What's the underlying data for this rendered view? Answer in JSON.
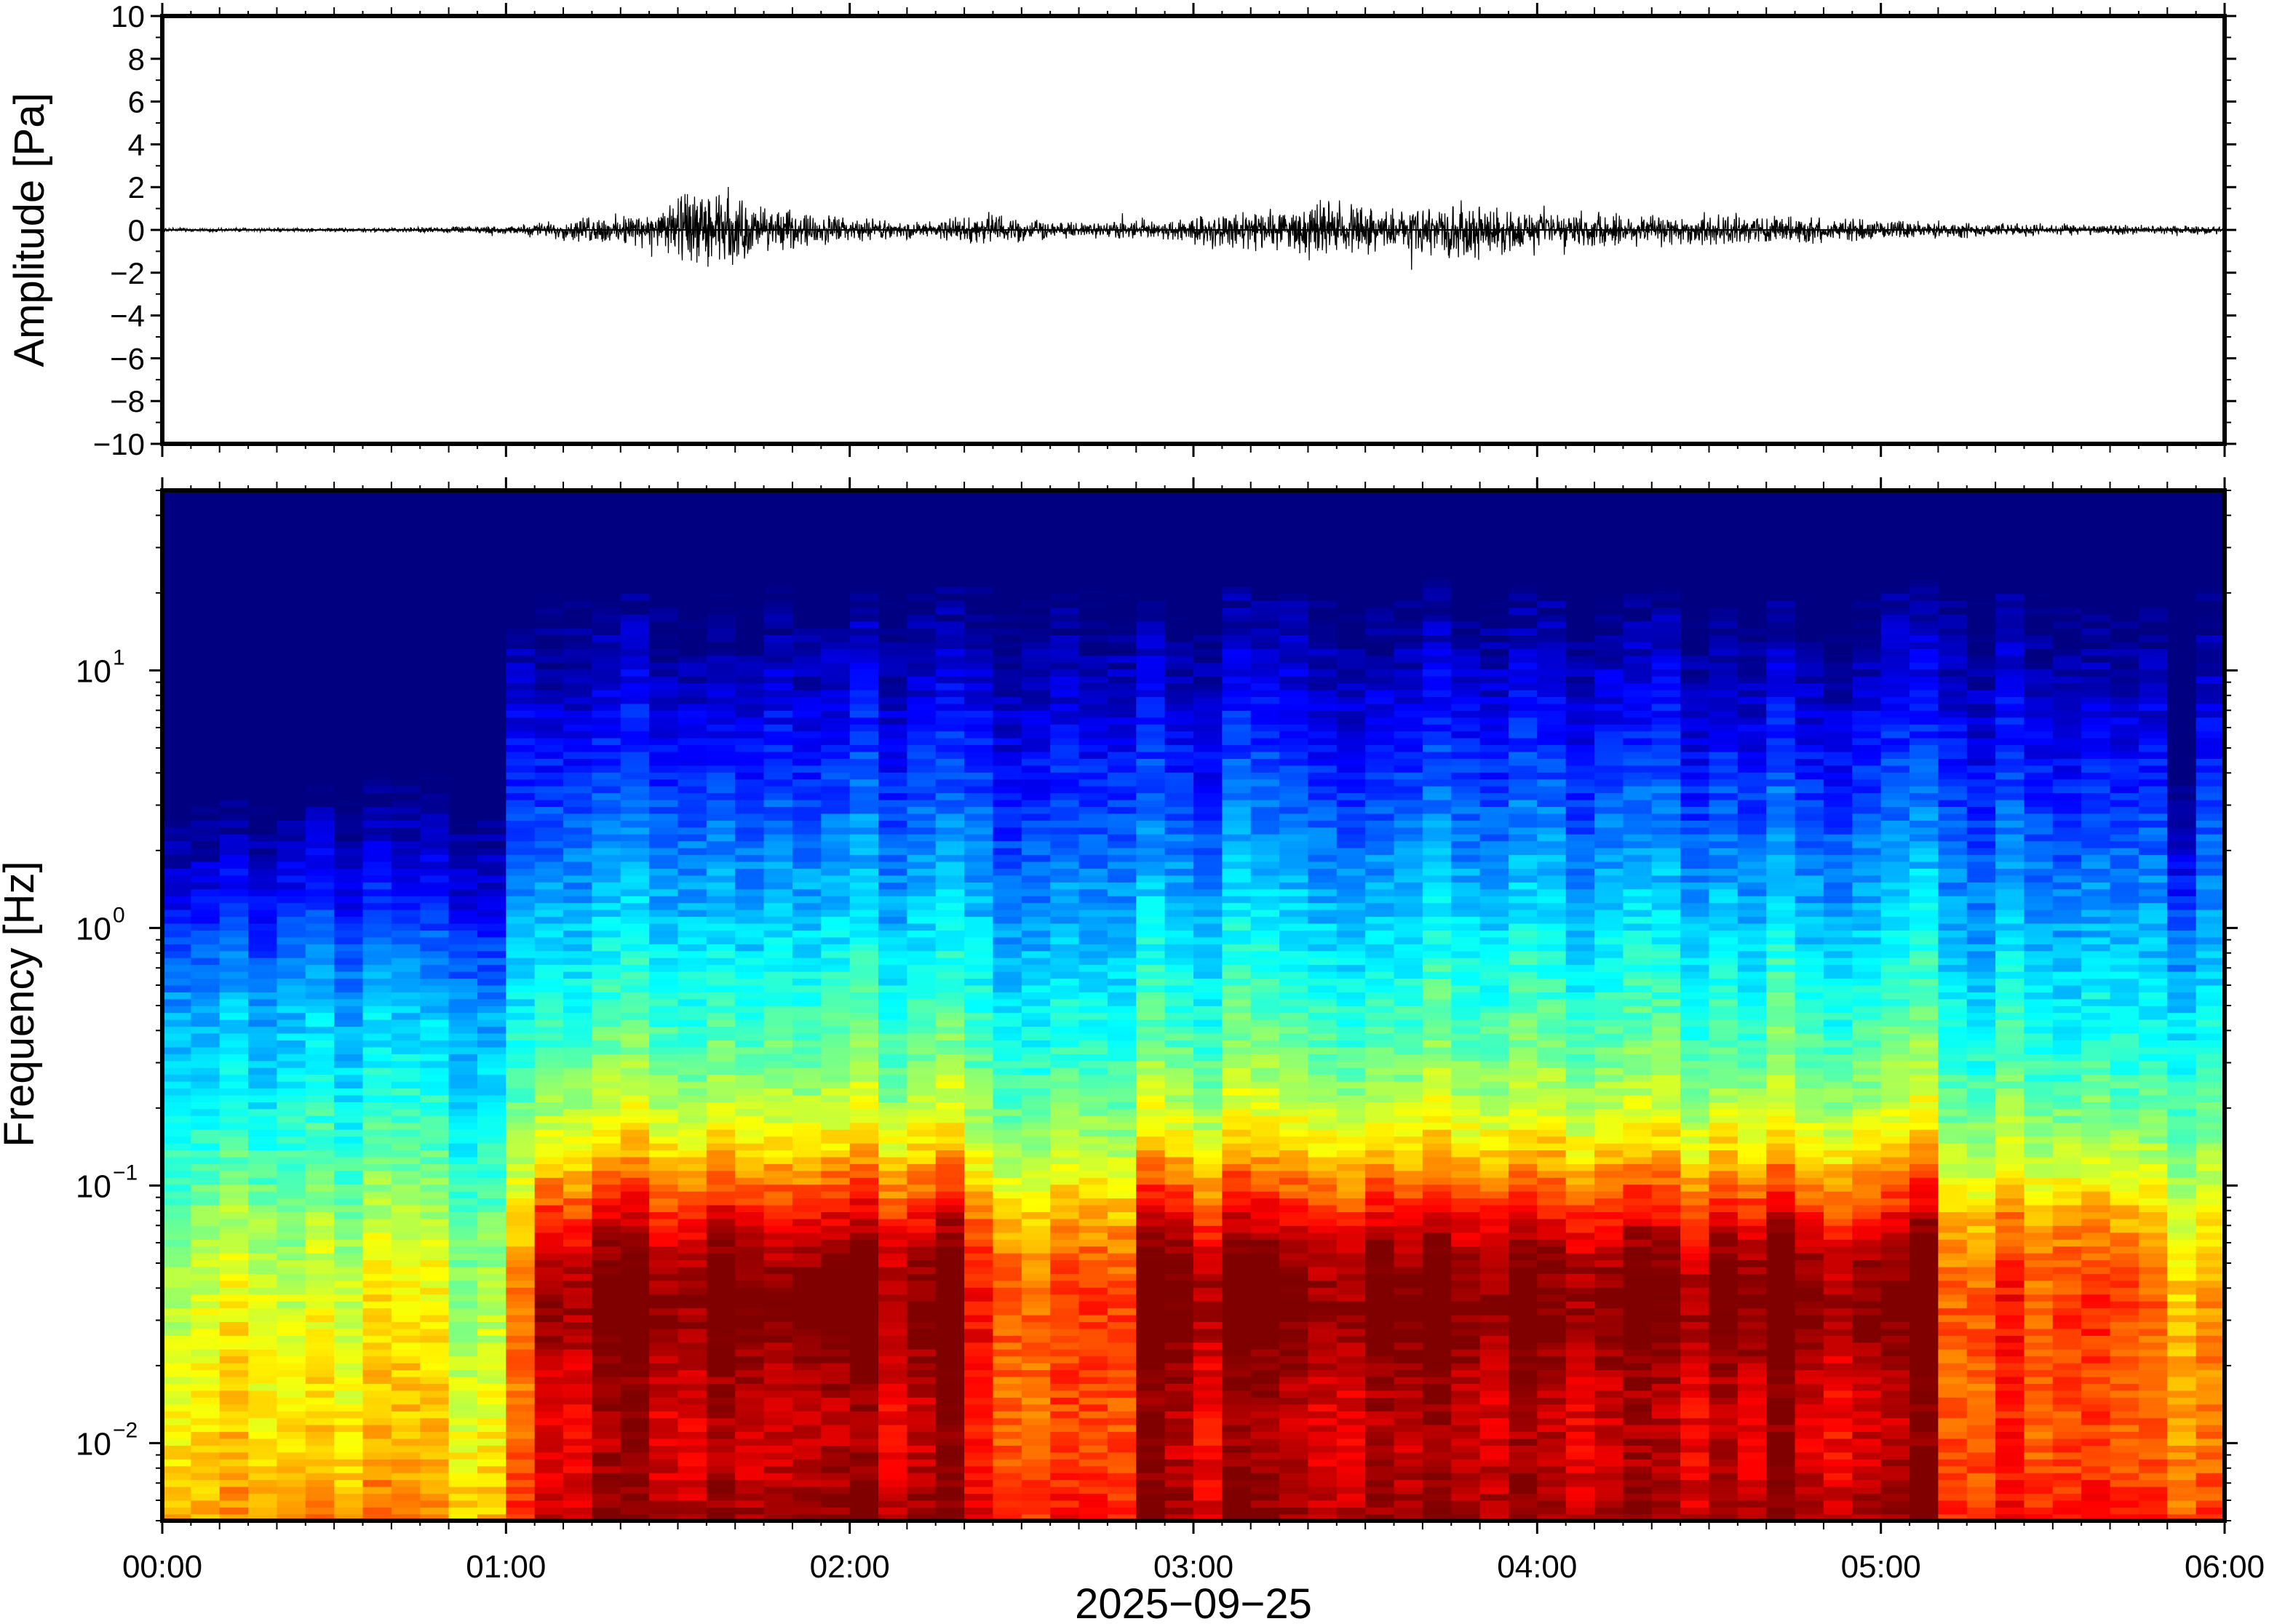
{
  "chart_data": [
    {
      "type": "line",
      "title": "",
      "ylabel": "Amplitude [Pa]",
      "ylim": [
        -10,
        10
      ],
      "yticks": [
        10,
        8,
        6,
        4,
        2,
        0,
        -2,
        -4,
        -6,
        -8,
        -10
      ],
      "ytick_labels": [
        "10",
        "8",
        "6",
        "4",
        "2",
        "0",
        "−2",
        "−4",
        "−6",
        "−8",
        "−10"
      ],
      "x_range_hours": [
        0,
        6
      ],
      "series": [
        {
          "values_description_envelope": {
            "x_hours": [
              0.0,
              0.5,
              1.0,
              1.2,
              1.3,
              1.45,
              1.5,
              1.6,
              1.7,
              1.8,
              2.0,
              2.2,
              2.4,
              2.6,
              2.9,
              3.1,
              3.3,
              3.4,
              3.6,
              3.8,
              4.0,
              4.2,
              4.5,
              4.8,
              5.0,
              5.5,
              6.0
            ],
            "peak_pa": [
              0.1,
              0.1,
              0.2,
              0.6,
              0.8,
              0.9,
              2.1,
              1.9,
              1.6,
              1.0,
              0.7,
              0.4,
              0.9,
              0.4,
              0.5,
              1.0,
              1.1,
              1.5,
              1.0,
              1.6,
              0.8,
              1.0,
              0.8,
              0.7,
              0.5,
              0.3,
              0.2
            ]
          }
        }
      ]
    },
    {
      "type": "heatmap",
      "title": "",
      "ylabel": "Frequency [Hz]",
      "xlabel": "2025−09−25",
      "yscale": "log",
      "ylim": [
        0.005,
        50
      ],
      "yticks": [
        {
          "base": "10",
          "exp": "1",
          "value": 10
        },
        {
          "base": "10",
          "exp": "0",
          "value": 1
        },
        {
          "base": "10",
          "exp": "−1",
          "value": 0.1
        },
        {
          "base": "10",
          "exp": "−2",
          "value": 0.01
        }
      ],
      "x_range_hours": [
        0,
        6
      ],
      "xtick_labels": [
        "00:00",
        "01:00",
        "02:00",
        "03:00",
        "04:00",
        "05:00",
        "06:00"
      ],
      "colormap": "jet",
      "colors": {
        "low": "#00007f",
        "mid": "#7fff7f",
        "high": "#ff4040"
      },
      "high_power_band_hz": [
        0.01,
        0.2
      ],
      "high_power_period_hours": [
        [
          1.2,
          2.2
        ],
        [
          2.9,
          3.8
        ],
        [
          4.0,
          5.0
        ]
      ]
    }
  ]
}
